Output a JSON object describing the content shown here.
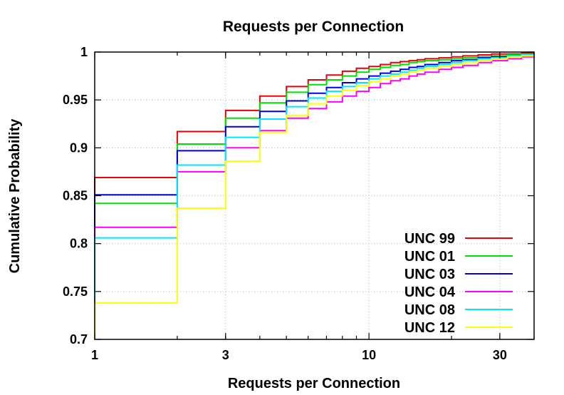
{
  "chart_data": {
    "type": "line",
    "title": "Requests per Connection",
    "xlabel": "Requests per Connection",
    "ylabel": "Cumulative Probability",
    "xscale": "log",
    "xlim": [
      1,
      40
    ],
    "ylim": [
      0.7,
      1
    ],
    "x_ticks": [
      1,
      3,
      10,
      30
    ],
    "x_tick_labels": [
      "1",
      "3",
      "10",
      "30"
    ],
    "y_ticks": [
      0.7,
      0.75,
      0.8,
      0.85,
      0.9,
      0.95,
      1
    ],
    "y_tick_labels": [
      "0.7",
      "0.75",
      "0.8",
      "0.85",
      "0.9",
      "0.95",
      "1"
    ],
    "grid": true,
    "legend_position": "bottom-right",
    "step": true,
    "series": [
      {
        "name": "UNC 99",
        "color": "#e8000b",
        "x": [
          1,
          2,
          3,
          4,
          5,
          6,
          7,
          8,
          9,
          10,
          11,
          12,
          13,
          14,
          15,
          16,
          18,
          20,
          22,
          25,
          28,
          32,
          36,
          40
        ],
        "y": [
          0.869,
          0.917,
          0.939,
          0.954,
          0.964,
          0.971,
          0.976,
          0.98,
          0.983,
          0.985,
          0.987,
          0.989,
          0.99,
          0.991,
          0.992,
          0.993,
          0.994,
          0.995,
          0.996,
          0.997,
          0.998,
          0.998,
          0.999,
          0.999
        ]
      },
      {
        "name": "UNC 01",
        "color": "#00e000",
        "x": [
          1,
          2,
          3,
          4,
          5,
          6,
          7,
          8,
          9,
          10,
          11,
          12,
          13,
          14,
          15,
          16,
          18,
          20,
          22,
          25,
          28,
          32,
          36,
          40
        ],
        "y": [
          0.842,
          0.904,
          0.931,
          0.947,
          0.958,
          0.966,
          0.971,
          0.975,
          0.979,
          0.982,
          0.984,
          0.986,
          0.987,
          0.989,
          0.99,
          0.991,
          0.992,
          0.993,
          0.994,
          0.995,
          0.996,
          0.997,
          0.998,
          0.999
        ]
      },
      {
        "name": "UNC 03",
        "color": "#0000e0",
        "x": [
          1,
          2,
          3,
          4,
          5,
          6,
          7,
          8,
          9,
          10,
          11,
          12,
          13,
          14,
          15,
          16,
          18,
          20,
          22,
          25,
          28,
          32,
          36,
          40
        ],
        "y": [
          0.851,
          0.897,
          0.922,
          0.938,
          0.949,
          0.957,
          0.963,
          0.968,
          0.972,
          0.975,
          0.978,
          0.98,
          0.982,
          0.984,
          0.985,
          0.987,
          0.989,
          0.991,
          0.992,
          0.994,
          0.995,
          0.996,
          0.997,
          0.998
        ]
      },
      {
        "name": "UNC 04",
        "color": "#ff00ff",
        "x": [
          1,
          2,
          3,
          4,
          5,
          6,
          7,
          8,
          9,
          10,
          11,
          12,
          13,
          14,
          15,
          16,
          18,
          20,
          22,
          25,
          28,
          32,
          36,
          40
        ],
        "y": [
          0.817,
          0.875,
          0.9,
          0.918,
          0.931,
          0.941,
          0.948,
          0.954,
          0.959,
          0.963,
          0.967,
          0.97,
          0.972,
          0.975,
          0.977,
          0.979,
          0.982,
          0.984,
          0.986,
          0.989,
          0.991,
          0.993,
          0.995,
          0.996
        ]
      },
      {
        "name": "UNC 08",
        "color": "#00e8ff",
        "x": [
          1,
          2,
          3,
          4,
          5,
          6,
          7,
          8,
          9,
          10,
          11,
          12,
          13,
          14,
          15,
          16,
          18,
          20,
          22,
          25,
          28,
          32,
          36,
          40
        ],
        "y": [
          0.806,
          0.882,
          0.911,
          0.93,
          0.943,
          0.952,
          0.959,
          0.964,
          0.968,
          0.972,
          0.975,
          0.977,
          0.979,
          0.981,
          0.983,
          0.985,
          0.987,
          0.989,
          0.991,
          0.993,
          0.994,
          0.996,
          0.997,
          0.998
        ]
      },
      {
        "name": "UNC 12",
        "color": "#ffff00",
        "x": [
          1,
          2,
          3,
          4,
          5,
          6,
          7,
          8,
          9,
          10,
          11,
          12,
          13,
          14,
          15,
          16,
          18,
          20,
          22,
          25,
          28,
          32,
          36,
          40
        ],
        "y": [
          0.738,
          0.837,
          0.886,
          0.916,
          0.934,
          0.946,
          0.954,
          0.96,
          0.965,
          0.969,
          0.972,
          0.975,
          0.977,
          0.979,
          0.981,
          0.983,
          0.985,
          0.987,
          0.989,
          0.991,
          0.993,
          0.995,
          0.996,
          0.997
        ]
      }
    ]
  }
}
